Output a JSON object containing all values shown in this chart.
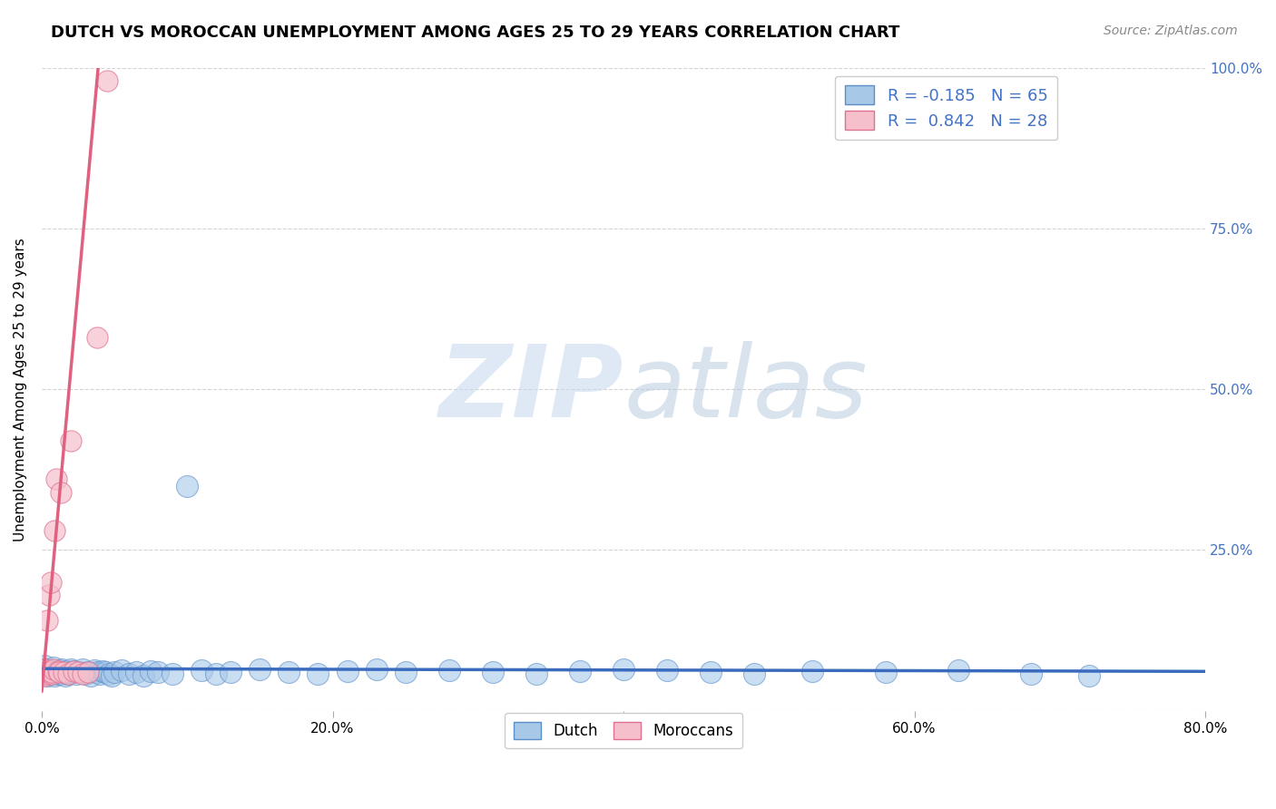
{
  "title": "DUTCH VS MOROCCAN UNEMPLOYMENT AMONG AGES 25 TO 29 YEARS CORRELATION CHART",
  "source_text": "Source: ZipAtlas.com",
  "ylabel_label": "Unemployment Among Ages 25 to 29 years",
  "legend_label1": "Dutch",
  "legend_label2": "Moroccans",
  "r1": "-0.185",
  "n1": "65",
  "r2": "0.842",
  "n2": "28",
  "dutch_color": "#a8c8e8",
  "dutch_edge_color": "#5b8fc9",
  "moroccan_color": "#f5c0cc",
  "moroccan_edge_color": "#e07090",
  "dutch_line_color": "#3a6bbf",
  "moroccan_line_color": "#e06080",
  "watermark_zip_color": "#c5d8ef",
  "watermark_atlas_color": "#b8cce0",
  "background_color": "#ffffff",
  "xmin": 0.0,
  "xmax": 0.8,
  "ymin": 0.0,
  "ymax": 1.0,
  "x_ticks": [
    0.0,
    0.2,
    0.4,
    0.6,
    0.8
  ],
  "y_ticks_right": [
    0.25,
    0.5,
    0.75,
    1.0
  ],
  "title_fontsize": 13,
  "source_fontsize": 10,
  "tick_fontsize": 11,
  "legend_fontsize": 13,
  "dutch_x": [
    0.001,
    0.002,
    0.003,
    0.004,
    0.005,
    0.006,
    0.007,
    0.008,
    0.009,
    0.01,
    0.011,
    0.012,
    0.013,
    0.014,
    0.015,
    0.016,
    0.017,
    0.018,
    0.019,
    0.02,
    0.022,
    0.024,
    0.026,
    0.028,
    0.03,
    0.032,
    0.034,
    0.036,
    0.038,
    0.04,
    0.042,
    0.044,
    0.046,
    0.048,
    0.05,
    0.055,
    0.06,
    0.065,
    0.07,
    0.075,
    0.08,
    0.09,
    0.1,
    0.11,
    0.12,
    0.13,
    0.15,
    0.17,
    0.19,
    0.21,
    0.23,
    0.25,
    0.28,
    0.31,
    0.34,
    0.37,
    0.4,
    0.43,
    0.46,
    0.49,
    0.53,
    0.58,
    0.63,
    0.68,
    0.72
  ],
  "dutch_y": [
    0.06,
    0.07,
    0.065,
    0.055,
    0.06,
    0.058,
    0.062,
    0.068,
    0.055,
    0.06,
    0.058,
    0.063,
    0.057,
    0.065,
    0.06,
    0.055,
    0.062,
    0.058,
    0.06,
    0.065,
    0.062,
    0.058,
    0.06,
    0.065,
    0.058,
    0.06,
    0.055,
    0.063,
    0.06,
    0.058,
    0.062,
    0.06,
    0.058,
    0.055,
    0.06,
    0.063,
    0.058,
    0.06,
    0.055,
    0.062,
    0.06,
    0.058,
    0.35,
    0.063,
    0.058,
    0.06,
    0.065,
    0.06,
    0.058,
    0.062,
    0.065,
    0.06,
    0.063,
    0.06,
    0.058,
    0.062,
    0.065,
    0.063,
    0.06,
    0.058,
    0.062,
    0.06,
    0.063,
    0.058,
    0.055
  ],
  "moroccan_x": [
    0.001,
    0.002,
    0.002,
    0.003,
    0.003,
    0.004,
    0.004,
    0.005,
    0.005,
    0.006,
    0.006,
    0.007,
    0.007,
    0.008,
    0.009,
    0.01,
    0.011,
    0.012,
    0.013,
    0.015,
    0.018,
    0.02,
    0.022,
    0.025,
    0.028,
    0.032,
    0.038,
    0.045
  ],
  "moroccan_y": [
    0.06,
    0.055,
    0.065,
    0.06,
    0.058,
    0.062,
    0.14,
    0.06,
    0.18,
    0.062,
    0.2,
    0.058,
    0.06,
    0.065,
    0.28,
    0.36,
    0.062,
    0.06,
    0.34,
    0.06,
    0.058,
    0.42,
    0.062,
    0.06,
    0.058,
    0.06,
    0.58,
    0.98
  ],
  "moroccan_trend_x0": 0.0,
  "moroccan_trend_x1": 0.8,
  "dutch_trend_x0": 0.0,
  "dutch_trend_x1": 0.8
}
